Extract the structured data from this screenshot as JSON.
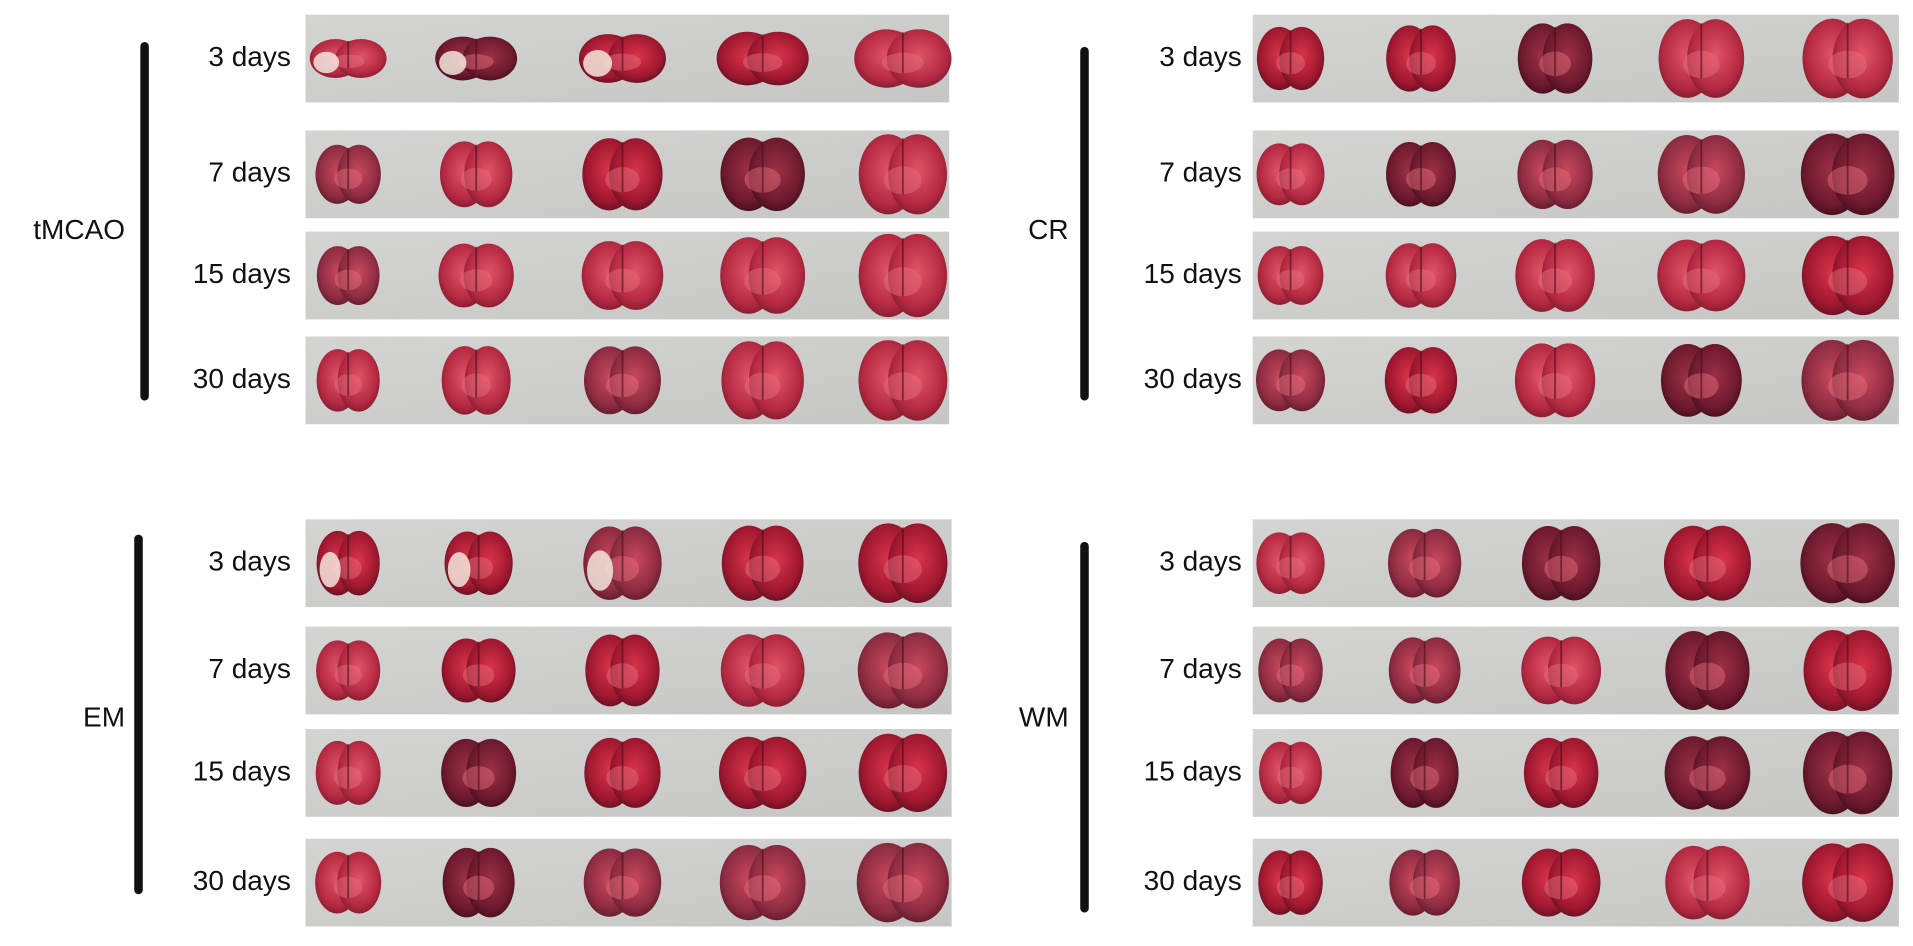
{
  "panels": [
    {
      "group": "tMCAO",
      "rows": [
        "3 days",
        "7 days",
        "15 days",
        "30 days"
      ]
    },
    {
      "group": "CR",
      "rows": [
        "3 days",
        "7 days",
        "15 days",
        "30 days"
      ]
    },
    {
      "group": "EM",
      "rows": [
        "3 days",
        "7 days",
        "15 days",
        "30 days"
      ]
    },
    {
      "group": "WM",
      "rows": [
        "3 days",
        "7 days",
        "15 days",
        "30 days"
      ]
    }
  ]
}
